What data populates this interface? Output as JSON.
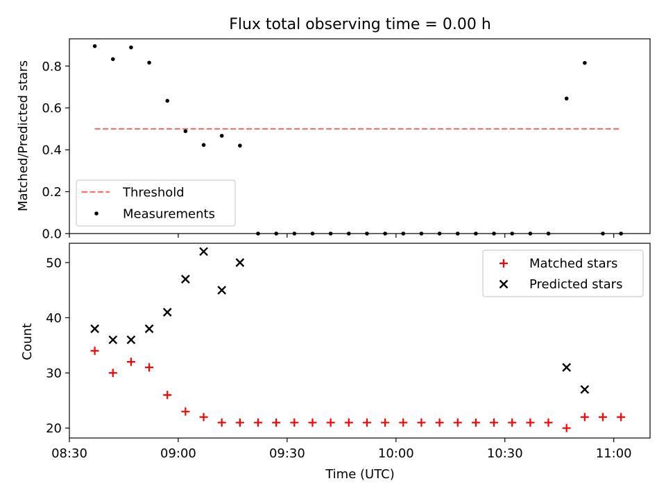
{
  "chart_data": [
    {
      "type": "scatter",
      "title": "Flux total observing time = 0.00 h",
      "ylabel": "Matched/Predicted stars",
      "xlabel": "",
      "ylim": [
        0.0,
        0.93
      ],
      "xlim": [
        "08:30",
        "11:10"
      ],
      "y_ticks": [
        "0.0",
        "0.2",
        "0.4",
        "0.6",
        "0.8"
      ],
      "grid": false,
      "legend_position": "lower-left",
      "series": [
        {
          "name": "Threshold",
          "style": "dashed-line",
          "color": "#ff6e6e",
          "x": [
            "08:37",
            "11:02"
          ],
          "y": [
            0.5,
            0.5
          ]
        },
        {
          "name": "Measurements",
          "style": "dot",
          "color": "#000000",
          "x": [
            "08:37",
            "08:42",
            "08:47",
            "08:52",
            "08:57",
            "09:02",
            "09:07",
            "09:12",
            "09:17",
            "09:22",
            "09:27",
            "09:32",
            "09:37",
            "09:42",
            "09:47",
            "09:52",
            "09:57",
            "10:02",
            "10:07",
            "10:12",
            "10:17",
            "10:22",
            "10:27",
            "10:32",
            "10:37",
            "10:42",
            "10:47",
            "10:52",
            "10:57",
            "11:02"
          ],
          "y": [
            0.895,
            0.833,
            0.889,
            0.816,
            0.634,
            0.489,
            0.423,
            0.467,
            0.42,
            0.0,
            0.0,
            0.0,
            0.0,
            0.0,
            0.0,
            0.0,
            0.0,
            0.0,
            0.0,
            0.0,
            0.0,
            0.0,
            0.0,
            0.0,
            0.0,
            0.0,
            0.645,
            0.815,
            0.0,
            0.0
          ]
        }
      ]
    },
    {
      "type": "scatter",
      "title": "",
      "ylabel": "Count",
      "xlabel": "Time (UTC)",
      "ylim": [
        18.2,
        53.5
      ],
      "xlim": [
        "08:30",
        "11:10"
      ],
      "x_ticks": [
        "08:30",
        "09:00",
        "09:30",
        "10:00",
        "10:30",
        "11:00"
      ],
      "y_ticks": [
        "20",
        "30",
        "40",
        "50"
      ],
      "grid": false,
      "legend_position": "top-right",
      "series": [
        {
          "name": "Matched stars",
          "marker": "plus",
          "color": "#ff0000",
          "x": [
            "08:37",
            "08:42",
            "08:47",
            "08:52",
            "08:57",
            "09:02",
            "09:07",
            "09:12",
            "09:17",
            "09:22",
            "09:27",
            "09:32",
            "09:37",
            "09:42",
            "09:47",
            "09:52",
            "09:57",
            "10:02",
            "10:07",
            "10:12",
            "10:17",
            "10:22",
            "10:27",
            "10:32",
            "10:37",
            "10:42",
            "10:47",
            "10:52",
            "10:57",
            "11:02"
          ],
          "y": [
            34,
            30,
            32,
            31,
            26,
            23,
            22,
            21,
            21,
            21,
            21,
            21,
            21,
            21,
            21,
            21,
            21,
            21,
            21,
            21,
            21,
            21,
            21,
            21,
            21,
            21,
            20,
            22,
            22,
            22
          ]
        },
        {
          "name": "Predicted stars",
          "marker": "x",
          "color": "#000000",
          "x": [
            "08:37",
            "08:42",
            "08:47",
            "08:52",
            "08:57",
            "09:02",
            "09:07",
            "09:12",
            "09:17",
            "10:47",
            "10:52"
          ],
          "y": [
            38,
            36,
            36,
            38,
            41,
            47,
            52,
            45,
            50,
            31,
            27
          ]
        }
      ]
    }
  ]
}
